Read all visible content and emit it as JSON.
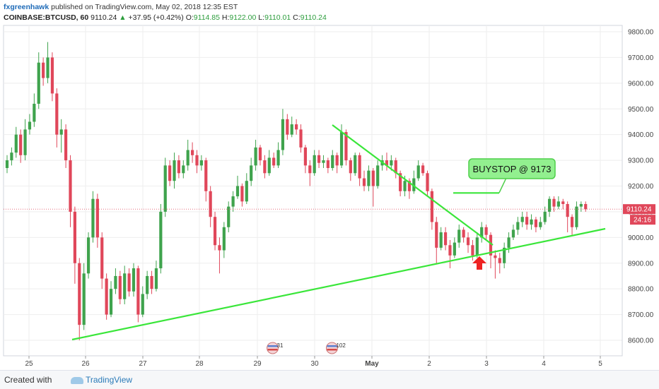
{
  "header": {
    "author": "fxgreenhawk",
    "published_text": "published on TradingView.com, May 02, 2018 12:35 EST",
    "symbol": "COINBASE:BTCUSD, 60",
    "last": "9110.24",
    "change": "+37.95 (+0.42%)",
    "open_label": "O:",
    "open": "9114.85",
    "high_label": "H:",
    "high": "9122.00",
    "low_label": "L:",
    "low": "9110.01",
    "close_label": "C:",
    "close": "9110.24"
  },
  "footer": {
    "created_with": "Created with",
    "brand": "TradingView"
  },
  "colors": {
    "up": "#3fa34d",
    "down": "#e0475a",
    "trendline": "#3ae63a",
    "price_line": "#e0475a",
    "arrow": "#ee2222",
    "grid": "#eeeeee",
    "callout_fill": "#92f08f",
    "callout_border": "#4ecf4a"
  },
  "chart_data": {
    "type": "candlestick",
    "x_ticks": [
      "25",
      "26",
      "27",
      "28",
      "29",
      "30",
      "May",
      "2",
      "3",
      "4",
      "5"
    ],
    "y_ticks": [
      "9800.00",
      "9700.00",
      "9600.00",
      "9500.00",
      "9400.00",
      "9300.00",
      "9200.00",
      "9100.00",
      "9000.00",
      "8900.00",
      "8800.00",
      "8700.00",
      "8600.00"
    ],
    "ylim": [
      8550,
      9830
    ],
    "grid": true,
    "last_price_label": "9110.24",
    "countdown_label": "24:16",
    "annotation_text": "BUYSTOP @ 9173",
    "buystop_level": 9173,
    "event_badges": [
      {
        "label": "31",
        "x": 4.7
      },
      {
        "label": "102",
        "x": 5.75
      }
    ],
    "candles": [
      {
        "x": 0.0,
        "o": 9270,
        "c": 9300,
        "h": 9320,
        "l": 9250
      },
      {
        "x": 0.08,
        "o": 9300,
        "c": 9330,
        "h": 9350,
        "l": 9280
      },
      {
        "x": 0.16,
        "o": 9330,
        "c": 9400,
        "h": 9430,
        "l": 9310
      },
      {
        "x": 0.24,
        "o": 9400,
        "c": 9320,
        "h": 9420,
        "l": 9290
      },
      {
        "x": 0.32,
        "o": 9320,
        "c": 9420,
        "h": 9460,
        "l": 9300
      },
      {
        "x": 0.4,
        "o": 9420,
        "c": 9450,
        "h": 9480,
        "l": 9400
      },
      {
        "x": 0.48,
        "o": 9450,
        "c": 9520,
        "h": 9560,
        "l": 9430
      },
      {
        "x": 0.56,
        "o": 9520,
        "c": 9680,
        "h": 9720,
        "l": 9500
      },
      {
        "x": 0.64,
        "o": 9680,
        "c": 9620,
        "h": 9700,
        "l": 9590
      },
      {
        "x": 0.72,
        "o": 9620,
        "c": 9700,
        "h": 9760,
        "l": 9600
      },
      {
        "x": 0.8,
        "o": 9700,
        "c": 9560,
        "h": 9720,
        "l": 9530
      },
      {
        "x": 0.88,
        "o": 9560,
        "c": 9400,
        "h": 9580,
        "l": 9350
      },
      {
        "x": 0.96,
        "o": 9400,
        "c": 9420,
        "h": 9460,
        "l": 9330
      },
      {
        "x": 1.04,
        "o": 9420,
        "c": 9300,
        "h": 9440,
        "l": 9270
      },
      {
        "x": 1.12,
        "o": 9300,
        "c": 9100,
        "h": 9320,
        "l": 9040
      },
      {
        "x": 1.2,
        "o": 9100,
        "c": 8900,
        "h": 9120,
        "l": 8820
      },
      {
        "x": 1.28,
        "o": 8900,
        "c": 8660,
        "h": 8920,
        "l": 8600
      },
      {
        "x": 1.36,
        "o": 8660,
        "c": 8860,
        "h": 8900,
        "l": 8640
      },
      {
        "x": 1.44,
        "o": 8860,
        "c": 9000,
        "h": 9020,
        "l": 8840
      },
      {
        "x": 1.52,
        "o": 9000,
        "c": 9150,
        "h": 9180,
        "l": 8980
      },
      {
        "x": 1.6,
        "o": 9150,
        "c": 9000,
        "h": 9170,
        "l": 8960
      },
      {
        "x": 1.68,
        "o": 9000,
        "c": 8840,
        "h": 9020,
        "l": 8800
      },
      {
        "x": 1.76,
        "o": 8840,
        "c": 8700,
        "h": 8860,
        "l": 8680
      },
      {
        "x": 1.84,
        "o": 8700,
        "c": 8800,
        "h": 8830,
        "l": 8690
      },
      {
        "x": 1.92,
        "o": 8800,
        "c": 8850,
        "h": 8880,
        "l": 8780
      },
      {
        "x": 2.0,
        "o": 8850,
        "c": 8760,
        "h": 8870,
        "l": 8740
      },
      {
        "x": 2.08,
        "o": 8760,
        "c": 8860,
        "h": 8890,
        "l": 8740
      },
      {
        "x": 2.16,
        "o": 8860,
        "c": 8790,
        "h": 8880,
        "l": 8770
      },
      {
        "x": 2.24,
        "o": 8790,
        "c": 8880,
        "h": 8900,
        "l": 8770
      },
      {
        "x": 2.32,
        "o": 8880,
        "c": 8700,
        "h": 8890,
        "l": 8670
      },
      {
        "x": 2.4,
        "o": 8700,
        "c": 8780,
        "h": 8810,
        "l": 8690
      },
      {
        "x": 2.48,
        "o": 8780,
        "c": 8850,
        "h": 8870,
        "l": 8760
      },
      {
        "x": 2.56,
        "o": 8850,
        "c": 8800,
        "h": 8870,
        "l": 8780
      },
      {
        "x": 2.64,
        "o": 8800,
        "c": 8880,
        "h": 8910,
        "l": 8790
      },
      {
        "x": 2.72,
        "o": 8880,
        "c": 9100,
        "h": 9130,
        "l": 8860
      },
      {
        "x": 2.8,
        "o": 9100,
        "c": 9280,
        "h": 9310,
        "l": 9080
      },
      {
        "x": 2.88,
        "o": 9280,
        "c": 9220,
        "h": 9300,
        "l": 9200
      },
      {
        "x": 2.96,
        "o": 9220,
        "c": 9300,
        "h": 9330,
        "l": 9190
      },
      {
        "x": 3.04,
        "o": 9300,
        "c": 9250,
        "h": 9320,
        "l": 9230
      },
      {
        "x": 3.12,
        "o": 9250,
        "c": 9280,
        "h": 9300,
        "l": 9230
      },
      {
        "x": 3.2,
        "o": 9280,
        "c": 9340,
        "h": 9380,
        "l": 9260
      },
      {
        "x": 3.28,
        "o": 9340,
        "c": 9320,
        "h": 9370,
        "l": 9290
      },
      {
        "x": 3.36,
        "o": 9320,
        "c": 9280,
        "h": 9340,
        "l": 9250
      },
      {
        "x": 3.44,
        "o": 9280,
        "c": 9300,
        "h": 9320,
        "l": 9260
      },
      {
        "x": 3.52,
        "o": 9300,
        "c": 9180,
        "h": 9310,
        "l": 9140
      },
      {
        "x": 3.6,
        "o": 9180,
        "c": 9080,
        "h": 9200,
        "l": 9040
      },
      {
        "x": 3.68,
        "o": 9080,
        "c": 8970,
        "h": 9100,
        "l": 8950
      },
      {
        "x": 3.76,
        "o": 8970,
        "c": 8950,
        "h": 9000,
        "l": 8860
      },
      {
        "x": 3.84,
        "o": 8950,
        "c": 9040,
        "h": 9060,
        "l": 8920
      },
      {
        "x": 3.92,
        "o": 9040,
        "c": 9120,
        "h": 9140,
        "l": 9020
      },
      {
        "x": 4.0,
        "o": 9120,
        "c": 9160,
        "h": 9180,
        "l": 9100
      },
      {
        "x": 4.08,
        "o": 9160,
        "c": 9200,
        "h": 9240,
        "l": 9150
      },
      {
        "x": 4.16,
        "o": 9200,
        "c": 9140,
        "h": 9210,
        "l": 9120
      },
      {
        "x": 4.24,
        "o": 9140,
        "c": 9220,
        "h": 9250,
        "l": 9130
      },
      {
        "x": 4.32,
        "o": 9220,
        "c": 9280,
        "h": 9310,
        "l": 9200
      },
      {
        "x": 4.4,
        "o": 9280,
        "c": 9350,
        "h": 9380,
        "l": 9260
      },
      {
        "x": 4.48,
        "o": 9350,
        "c": 9300,
        "h": 9360,
        "l": 9280
      },
      {
        "x": 4.56,
        "o": 9300,
        "c": 9250,
        "h": 9320,
        "l": 9230
      },
      {
        "x": 4.64,
        "o": 9250,
        "c": 9310,
        "h": 9340,
        "l": 9240
      },
      {
        "x": 4.72,
        "o": 9310,
        "c": 9280,
        "h": 9330,
        "l": 9270
      },
      {
        "x": 4.8,
        "o": 9280,
        "c": 9340,
        "h": 9370,
        "l": 9270
      },
      {
        "x": 4.88,
        "o": 9340,
        "c": 9460,
        "h": 9500,
        "l": 9320
      },
      {
        "x": 4.96,
        "o": 9460,
        "c": 9400,
        "h": 9480,
        "l": 9380
      },
      {
        "x": 5.04,
        "o": 9400,
        "c": 9440,
        "h": 9470,
        "l": 9390
      },
      {
        "x": 5.12,
        "o": 9440,
        "c": 9420,
        "h": 9460,
        "l": 9400
      },
      {
        "x": 5.2,
        "o": 9420,
        "c": 9350,
        "h": 9440,
        "l": 9330
      },
      {
        "x": 5.28,
        "o": 9350,
        "c": 9280,
        "h": 9360,
        "l": 9250
      },
      {
        "x": 5.36,
        "o": 9280,
        "c": 9250,
        "h": 9300,
        "l": 9200
      },
      {
        "x": 5.44,
        "o": 9250,
        "c": 9320,
        "h": 9340,
        "l": 9240
      },
      {
        "x": 5.52,
        "o": 9320,
        "c": 9290,
        "h": 9340,
        "l": 9270
      },
      {
        "x": 5.6,
        "o": 9290,
        "c": 9300,
        "h": 9320,
        "l": 9270
      },
      {
        "x": 5.68,
        "o": 9300,
        "c": 9270,
        "h": 9310,
        "l": 9250
      },
      {
        "x": 5.76,
        "o": 9270,
        "c": 9320,
        "h": 9340,
        "l": 9260
      },
      {
        "x": 5.84,
        "o": 9320,
        "c": 9280,
        "h": 9330,
        "l": 9250
      },
      {
        "x": 5.92,
        "o": 9280,
        "c": 9410,
        "h": 9440,
        "l": 9270
      },
      {
        "x": 6.0,
        "o": 9410,
        "c": 9300,
        "h": 9420,
        "l": 9280
      },
      {
        "x": 6.08,
        "o": 9300,
        "c": 9250,
        "h": 9310,
        "l": 9220
      },
      {
        "x": 6.16,
        "o": 9250,
        "c": 9320,
        "h": 9330,
        "l": 9240
      },
      {
        "x": 6.24,
        "o": 9320,
        "c": 9230,
        "h": 9330,
        "l": 9200
      },
      {
        "x": 6.32,
        "o": 9230,
        "c": 9200,
        "h": 9260,
        "l": 9180
      },
      {
        "x": 6.4,
        "o": 9200,
        "c": 9260,
        "h": 9280,
        "l": 9180
      },
      {
        "x": 6.48,
        "o": 9260,
        "c": 9200,
        "h": 9270,
        "l": 9120
      },
      {
        "x": 6.56,
        "o": 9200,
        "c": 9280,
        "h": 9300,
        "l": 9190
      },
      {
        "x": 6.64,
        "o": 9280,
        "c": 9300,
        "h": 9320,
        "l": 9260
      },
      {
        "x": 6.72,
        "o": 9300,
        "c": 9280,
        "h": 9330,
        "l": 9260
      },
      {
        "x": 6.8,
        "o": 9280,
        "c": 9300,
        "h": 9320,
        "l": 9260
      },
      {
        "x": 6.88,
        "o": 9300,
        "c": 9250,
        "h": 9310,
        "l": 9230
      },
      {
        "x": 6.96,
        "o": 9250,
        "c": 9180,
        "h": 9260,
        "l": 9160
      },
      {
        "x": 7.04,
        "o": 9180,
        "c": 9220,
        "h": 9240,
        "l": 9160
      },
      {
        "x": 7.12,
        "o": 9220,
        "c": 9180,
        "h": 9230,
        "l": 9150
      },
      {
        "x": 7.2,
        "o": 9180,
        "c": 9230,
        "h": 9260,
        "l": 9170
      },
      {
        "x": 7.28,
        "o": 9230,
        "c": 9280,
        "h": 9300,
        "l": 9220
      },
      {
        "x": 7.36,
        "o": 9280,
        "c": 9250,
        "h": 9290,
        "l": 9240
      },
      {
        "x": 7.44,
        "o": 9250,
        "c": 9180,
        "h": 9260,
        "l": 9160
      },
      {
        "x": 7.52,
        "o": 9180,
        "c": 9060,
        "h": 9190,
        "l": 9030
      },
      {
        "x": 7.6,
        "o": 9060,
        "c": 8960,
        "h": 9080,
        "l": 8900
      },
      {
        "x": 7.68,
        "o": 8960,
        "c": 9020,
        "h": 9040,
        "l": 8950
      },
      {
        "x": 7.76,
        "o": 9020,
        "c": 8970,
        "h": 9040,
        "l": 8950
      },
      {
        "x": 7.84,
        "o": 8970,
        "c": 8930,
        "h": 8990,
        "l": 8880
      },
      {
        "x": 7.92,
        "o": 8930,
        "c": 8980,
        "h": 9000,
        "l": 8920
      },
      {
        "x": 8.0,
        "o": 8980,
        "c": 9030,
        "h": 9050,
        "l": 8960
      },
      {
        "x": 8.08,
        "o": 9030,
        "c": 9000,
        "h": 9040,
        "l": 8980
      },
      {
        "x": 8.16,
        "o": 9000,
        "c": 8970,
        "h": 9020,
        "l": 8940
      },
      {
        "x": 8.24,
        "o": 8970,
        "c": 8930,
        "h": 8990,
        "l": 8910
      },
      {
        "x": 8.32,
        "o": 8930,
        "c": 9000,
        "h": 9020,
        "l": 8920
      },
      {
        "x": 8.4,
        "o": 9000,
        "c": 9040,
        "h": 9060,
        "l": 8980
      },
      {
        "x": 8.48,
        "o": 9040,
        "c": 9010,
        "h": 9050,
        "l": 8990
      },
      {
        "x": 8.56,
        "o": 9010,
        "c": 8930,
        "h": 9020,
        "l": 8880
      },
      {
        "x": 8.64,
        "o": 8930,
        "c": 8920,
        "h": 8950,
        "l": 8840
      },
      {
        "x": 8.72,
        "o": 8920,
        "c": 8900,
        "h": 8940,
        "l": 8860
      },
      {
        "x": 8.8,
        "o": 8900,
        "c": 8960,
        "h": 8980,
        "l": 8880
      },
      {
        "x": 8.88,
        "o": 8960,
        "c": 9000,
        "h": 9020,
        "l": 8940
      },
      {
        "x": 8.96,
        "o": 9000,
        "c": 9030,
        "h": 9050,
        "l": 8990
      },
      {
        "x": 9.04,
        "o": 9030,
        "c": 9060,
        "h": 9080,
        "l": 9010
      },
      {
        "x": 9.12,
        "o": 9060,
        "c": 9080,
        "h": 9100,
        "l": 9040
      },
      {
        "x": 9.2,
        "o": 9080,
        "c": 9050,
        "h": 9100,
        "l": 9030
      },
      {
        "x": 9.28,
        "o": 9050,
        "c": 9070,
        "h": 9090,
        "l": 9030
      },
      {
        "x": 9.36,
        "o": 9070,
        "c": 9040,
        "h": 9080,
        "l": 9020
      },
      {
        "x": 9.44,
        "o": 9040,
        "c": 9060,
        "h": 9080,
        "l": 9030
      },
      {
        "x": 9.52,
        "o": 9060,
        "c": 9100,
        "h": 9120,
        "l": 9050
      },
      {
        "x": 9.6,
        "o": 9100,
        "c": 9150,
        "h": 9160,
        "l": 9080
      },
      {
        "x": 9.68,
        "o": 9150,
        "c": 9120,
        "h": 9160,
        "l": 9100
      },
      {
        "x": 9.76,
        "o": 9120,
        "c": 9140,
        "h": 9160,
        "l": 9110
      },
      {
        "x": 9.84,
        "o": 9140,
        "c": 9130,
        "h": 9150,
        "l": 9110
      },
      {
        "x": 9.92,
        "o": 9130,
        "c": 9080,
        "h": 9140,
        "l": 9020
      },
      {
        "x": 10.0,
        "o": 9080,
        "c": 9040,
        "h": 9090,
        "l": 9010
      },
      {
        "x": 10.08,
        "o": 9040,
        "c": 9120,
        "h": 9140,
        "l": 9030
      },
      {
        "x": 10.16,
        "o": 9120,
        "c": 9130,
        "h": 9140,
        "l": 9100
      },
      {
        "x": 10.24,
        "o": 9130,
        "c": 9110,
        "h": 9140,
        "l": 9100
      }
    ]
  }
}
